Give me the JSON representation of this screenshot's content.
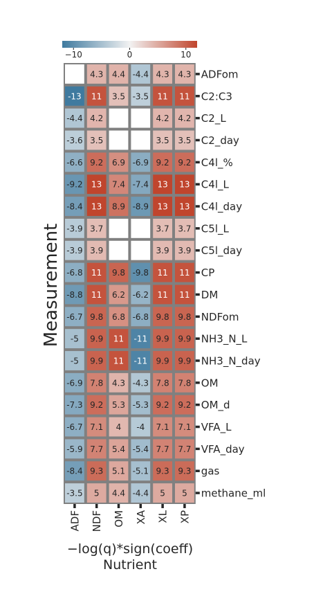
{
  "chart_data": {
    "type": "heatmap",
    "xlabel": "Nutrient",
    "ylabel": "Measurement",
    "colorbar_label": "−log(q)*sign(coeff)",
    "colorbar_ticks": [
      "−10",
      "0",
      "10"
    ],
    "colorbar_tick_values": [
      -10,
      0,
      10
    ],
    "vmin": -12,
    "vmax": 12,
    "colors": {
      "negative": "#3f7a9f",
      "neutral": "#f2f2f2",
      "positive": "#c0452d",
      "grid": "#808080",
      "missing": "#ffffff"
    },
    "columns": [
      "ADF",
      "NDF",
      "OM",
      "XA",
      "XL",
      "XP"
    ],
    "rows": [
      "ADFom",
      "C2:C3",
      "C2_L",
      "C2_day",
      "C4l_%",
      "C4l_L",
      "C4l_day",
      "C5l_L",
      "C5l_day",
      "CP",
      "DM",
      "NDFom",
      "NH3_N_L",
      "NH3_N_day",
      "OM",
      "OM_d",
      "VFA_L",
      "VFA_day",
      "gas",
      "methane_ml"
    ],
    "values": [
      [
        null,
        4.3,
        4.4,
        -4.4,
        4.3,
        4.3
      ],
      [
        -13,
        11,
        3.5,
        -3.5,
        11,
        11
      ],
      [
        -4.4,
        4.2,
        null,
        null,
        4.2,
        4.2
      ],
      [
        -3.6,
        3.5,
        null,
        null,
        3.5,
        3.5
      ],
      [
        -6.6,
        9.2,
        6.9,
        -6.9,
        9.2,
        9.2
      ],
      [
        -9.2,
        13,
        7.4,
        -7.4,
        13,
        13
      ],
      [
        -8.4,
        13,
        8.9,
        -8.9,
        13,
        13
      ],
      [
        -3.9,
        3.7,
        null,
        null,
        3.7,
        3.7
      ],
      [
        -3.9,
        3.9,
        null,
        null,
        3.9,
        3.9
      ],
      [
        -6.8,
        11,
        9.8,
        -9.8,
        11,
        11
      ],
      [
        -8.8,
        11,
        6.2,
        -6.2,
        11,
        11
      ],
      [
        -6.7,
        9.8,
        6.8,
        -6.8,
        9.8,
        9.8
      ],
      [
        -5,
        9.9,
        11,
        -11,
        9.9,
        9.9
      ],
      [
        -5,
        9.9,
        11,
        -11,
        9.9,
        9.9
      ],
      [
        -6.9,
        7.8,
        4.3,
        -4.3,
        7.8,
        7.8
      ],
      [
        -7.3,
        9.2,
        5.3,
        -5.3,
        9.2,
        9.2
      ],
      [
        -6.7,
        7.1,
        4,
        -4,
        7.1,
        7.1
      ],
      [
        -5.9,
        7.7,
        5.4,
        -5.4,
        7.7,
        7.7
      ],
      [
        -8.4,
        9.3,
        5.1,
        -5.1,
        9.3,
        9.3
      ],
      [
        -3.5,
        5,
        4.4,
        -4.4,
        5,
        5
      ]
    ]
  }
}
